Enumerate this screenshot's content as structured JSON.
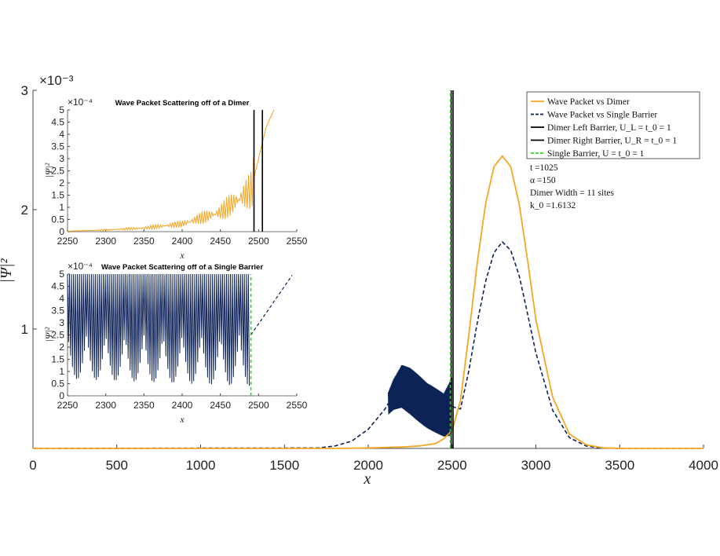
{
  "colors": {
    "dimer": "#f5a623",
    "single": "#0d2257",
    "barrier": "#000000",
    "single_barrier": "#22dd22"
  },
  "main": {
    "xlabel": "x",
    "ylabel": "|Ψ|²",
    "exponent": "×10⁻³",
    "xlim": [
      0,
      4000
    ],
    "ylim": [
      0,
      0.003
    ],
    "xticks": [
      "0",
      "500",
      "1000",
      "1500",
      "2000",
      "2500",
      "3000",
      "3500",
      "4000"
    ],
    "yticks": [
      "1",
      "2",
      "3"
    ],
    "ytick_values": [
      0.001,
      0.002,
      0.003
    ]
  },
  "legend": {
    "items": [
      {
        "label": "Wave Packet vs Dimer",
        "style": "solid",
        "color": "#f5a623"
      },
      {
        "label": "Wave Packet vs Single Barrier",
        "style": "dashed",
        "color": "#0d2257"
      },
      {
        "label": "Dimer Left Barrier, U_L = t_0 = 1",
        "style": "solid",
        "color": "#000000"
      },
      {
        "label": "Dimer Right Barrier, U_R = t_0 = 1",
        "style": "solid",
        "color": "#000000"
      },
      {
        "label": "Single Barrier, U = t_0 = 1",
        "style": "dashed",
        "color": "#22dd22"
      }
    ]
  },
  "annotations": [
    "t =1025",
    "α =150",
    "Dimer Width = 11 sites",
    "k_0 =1.6132"
  ],
  "inset_top": {
    "title": "Wave Packet Scattering off of a Dimer",
    "exponent": "×10⁻⁴",
    "xlabel": "x",
    "ylabel": "|Ψ|²",
    "xlim": [
      2250,
      2550
    ],
    "ylim": [
      0,
      5
    ],
    "xticks": [
      "2250",
      "2300",
      "2350",
      "2400",
      "2450",
      "2500",
      "2550"
    ],
    "yticks": [
      "0",
      "0.5",
      "1",
      "1.5",
      "2",
      "2.5",
      "3",
      "3.5",
      "4",
      "4.5",
      "5"
    ]
  },
  "inset_bottom": {
    "title": "Wave Packet Scattering off of a Single Barrier",
    "exponent": "×10⁻⁴",
    "xlabel": "x",
    "ylabel": "|Ψ|²",
    "xlim": [
      2250,
      2550
    ],
    "ylim": [
      0,
      5
    ],
    "xticks": [
      "2250",
      "2300",
      "2350",
      "2400",
      "2450",
      "2500",
      "2550"
    ],
    "yticks": [
      "0",
      "0.5",
      "1",
      "1.5",
      "2",
      "2.5",
      "3",
      "3.5",
      "4",
      "4.5",
      "5"
    ]
  },
  "chart_data": [
    {
      "type": "line",
      "series": [
        {
          "name": "Wave Packet vs Dimer",
          "x": [
            0,
            1800,
            2000,
            2200,
            2300,
            2400,
            2450,
            2500,
            2550,
            2600,
            2650,
            2700,
            2750,
            2800,
            2850,
            2900,
            2950,
            3000,
            3100,
            3200,
            3300,
            3400,
            3500,
            4000
          ],
          "y": [
            0,
            0,
            4e-06,
            1.2e-05,
            2e-05,
            4e-05,
            8e-05,
            0.00015,
            0.0004,
            0.00095,
            0.00155,
            0.00205,
            0.00236,
            0.00245,
            0.00236,
            0.00205,
            0.00158,
            0.00108,
            0.00043,
            0.00012,
            3e-05,
            5e-06,
            0,
            0
          ]
        },
        {
          "name": "Wave Packet vs Single Barrier",
          "x": [
            0,
            1700,
            1800,
            1900,
            2000,
            2100,
            2150,
            2200,
            2250,
            2300,
            2350,
            2400,
            2450,
            2500,
            2550,
            2600,
            2650,
            2700,
            2750,
            2800,
            2850,
            2900,
            2950,
            3000,
            3100,
            3200,
            3300,
            3400,
            3500,
            4000
          ],
          "y": [
            0,
            4e-06,
            2e-05,
            6e-05,
            0.00016,
            0.00033,
            0.00045,
            0.00052,
            0.00048,
            0.00042,
            0.00036,
            0.00032,
            0.00028,
            0.00035,
            0.00033,
            0.00065,
            0.00105,
            0.0014,
            0.00164,
            0.00173,
            0.00166,
            0.00145,
            0.00113,
            0.0008,
            0.00032,
            9e-05,
            2e-05,
            3e-06,
            0,
            0
          ]
        }
      ],
      "barriers": {
        "dimer_left": 2495,
        "dimer_right": 2506,
        "single": 2490
      },
      "xlim": [
        0,
        4000
      ],
      "ylim": [
        0,
        0.003
      ]
    },
    {
      "type": "line",
      "title": "Wave Packet Scattering off of a Dimer",
      "series": [
        {
          "name": "Wave Packet vs Dimer",
          "x": [
            2250,
            2300,
            2350,
            2400,
            2450,
            2490,
            2500,
            2510,
            2520
          ],
          "y": [
            0.02,
            0.07,
            0.15,
            0.32,
            0.8,
            1.7,
            3.0,
            4.3,
            5.0
          ]
        }
      ],
      "barriers": {
        "dimer_left": 2494,
        "dimer_right": 2505
      },
      "xlim": [
        2250,
        2550
      ],
      "ylim": [
        0,
        5
      ]
    },
    {
      "type": "line",
      "title": "Wave Packet Scattering off of a Single Barrier",
      "series": [
        {
          "name": "Wave Packet vs Single Barrier",
          "x": [
            2250,
            2275,
            2300,
            2325,
            2350,
            2375,
            2400,
            2425,
            2450,
            2475,
            2490,
            2500,
            2520,
            2545
          ],
          "y": [
            4.8,
            4.3,
            4.5,
            3.2,
            3.6,
            2.4,
            2.8,
            1.6,
            2.2,
            1.4,
            4.0,
            2.5,
            3.6,
            5.0
          ]
        }
      ],
      "barriers": {
        "single": 2490
      },
      "xlim": [
        2250,
        2550
      ],
      "ylim": [
        0,
        5
      ]
    }
  ]
}
